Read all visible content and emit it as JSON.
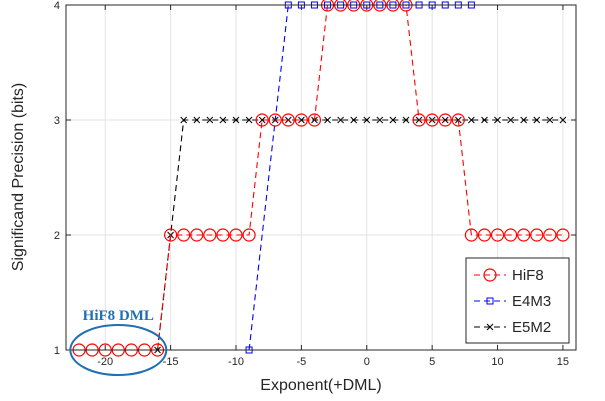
{
  "chart_data": {
    "type": "line",
    "title": "",
    "xlabel": "Exponent(+DML)",
    "ylabel": "Significand Precision (bits)",
    "xlim": [
      -23,
      16
    ],
    "ylim": [
      1,
      4
    ],
    "x_ticks": [
      -20,
      -15,
      -10,
      -5,
      0,
      5,
      10,
      15
    ],
    "y_ticks": [
      1,
      2,
      3,
      4
    ],
    "grid": true,
    "legend_position": "bottom-right",
    "series": [
      {
        "name": "HiF8",
        "color": "#ff0000",
        "marker": "circle",
        "x": [
          -22,
          -21,
          -20,
          -19,
          -18,
          -17,
          -16,
          -15,
          -14,
          -13,
          -12,
          -11,
          -10,
          -9,
          -8,
          -7,
          -6,
          -5,
          -4,
          -3,
          -2,
          -1,
          0,
          1,
          2,
          3,
          4,
          5,
          6,
          7,
          8,
          9,
          10,
          11,
          12,
          13,
          14,
          15
        ],
        "y": [
          1,
          1,
          1,
          1,
          1,
          1,
          1,
          2,
          2,
          2,
          2,
          2,
          2,
          2,
          3,
          3,
          3,
          3,
          3,
          4,
          4,
          4,
          4,
          4,
          4,
          4,
          3,
          3,
          3,
          3,
          2,
          2,
          2,
          2,
          2,
          2,
          2,
          2
        ]
      },
      {
        "name": "E4M3",
        "color": "#0000ff",
        "marker": "square",
        "x": [
          -9,
          -6,
          -5,
          -4,
          -3,
          -2,
          -1,
          0,
          1,
          2,
          3,
          4,
          5,
          6,
          7,
          8
        ],
        "y": [
          1,
          4,
          4,
          4,
          4,
          4,
          4,
          4,
          4,
          4,
          4,
          4,
          4,
          4,
          4,
          4
        ]
      },
      {
        "name": "E5M2",
        "color": "#000000",
        "marker": "x",
        "x": [
          -16,
          -15,
          -14,
          -13,
          -12,
          -11,
          -10,
          -9,
          -8,
          -7,
          -6,
          -5,
          -4,
          -3,
          -2,
          -1,
          0,
          1,
          2,
          3,
          4,
          5,
          6,
          7,
          8,
          9,
          10,
          11,
          12,
          13,
          14,
          15
        ],
        "y": [
          1,
          2,
          3,
          3,
          3,
          3,
          3,
          3,
          3,
          3,
          3,
          3,
          3,
          3,
          3,
          3,
          3,
          3,
          3,
          3,
          3,
          3,
          3,
          3,
          3,
          3,
          3,
          3,
          3,
          3,
          3,
          3
        ]
      }
    ],
    "annotations": [
      {
        "text": "HiF8 DML",
        "x": -19,
        "y": 1
      }
    ]
  }
}
